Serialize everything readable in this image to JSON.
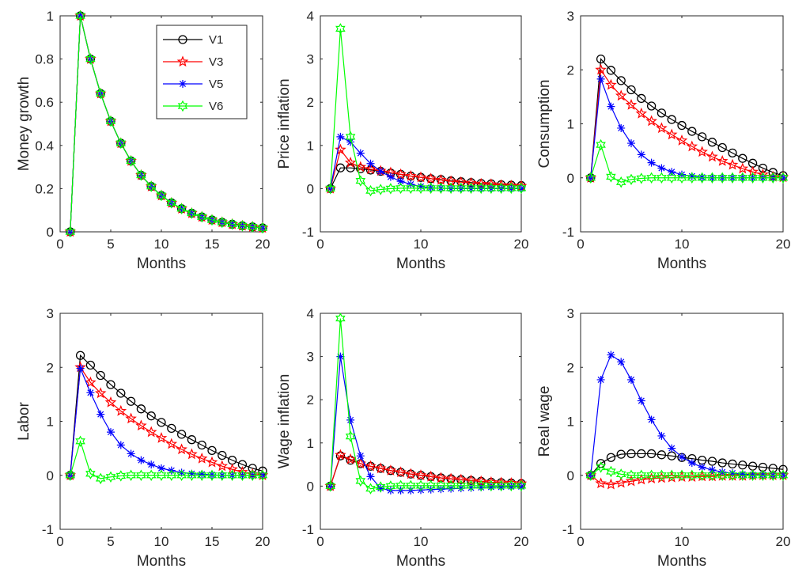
{
  "figure": {
    "colors": {
      "V1": "#000000",
      "V3": "#ff0000",
      "V5": "#0000ff",
      "V6": "#00ff00"
    }
  },
  "chart_data": [
    {
      "type": "line",
      "ylabel": "Money growth",
      "xlabel": "Months",
      "xlim": [
        0,
        20
      ],
      "ylim": [
        0,
        1
      ],
      "xticks": [
        "0",
        "5",
        "10",
        "15",
        "20"
      ],
      "yticks": [
        "0",
        "0.2",
        "0.4",
        "0.6",
        "0.8",
        "1"
      ],
      "x": [
        1,
        2,
        3,
        4,
        5,
        6,
        7,
        8,
        9,
        10,
        11,
        12,
        13,
        14,
        15,
        16,
        17,
        18,
        19,
        20
      ],
      "legend": {
        "location": "top-right"
      },
      "series": [
        {
          "name": "V1",
          "marker": "circle",
          "values": [
            0,
            1,
            0.8,
            0.64,
            0.512,
            0.41,
            0.328,
            0.262,
            0.21,
            0.168,
            0.134,
            0.107,
            0.086,
            0.069,
            0.055,
            0.044,
            0.035,
            0.028,
            0.023,
            0.018
          ]
        },
        {
          "name": "V3",
          "marker": "star",
          "values": [
            0,
            1,
            0.8,
            0.64,
            0.512,
            0.41,
            0.328,
            0.262,
            0.21,
            0.168,
            0.134,
            0.107,
            0.086,
            0.069,
            0.055,
            0.044,
            0.035,
            0.028,
            0.023,
            0.018
          ]
        },
        {
          "name": "V5",
          "marker": "asterisk",
          "values": [
            0,
            1,
            0.8,
            0.64,
            0.512,
            0.41,
            0.328,
            0.262,
            0.21,
            0.168,
            0.134,
            0.107,
            0.086,
            0.069,
            0.055,
            0.044,
            0.035,
            0.028,
            0.023,
            0.018
          ]
        },
        {
          "name": "V6",
          "marker": "hexagram",
          "values": [
            0,
            1,
            0.8,
            0.64,
            0.512,
            0.41,
            0.328,
            0.262,
            0.21,
            0.168,
            0.134,
            0.107,
            0.086,
            0.069,
            0.055,
            0.044,
            0.035,
            0.028,
            0.023,
            0.018
          ]
        }
      ]
    },
    {
      "type": "line",
      "ylabel": "Price inflation",
      "xlabel": "Months",
      "xlim": [
        0,
        20
      ],
      "ylim": [
        -1,
        4
      ],
      "xticks": [
        "0",
        "10",
        "20"
      ],
      "yticks": [
        "-1",
        "0",
        "1",
        "2",
        "3",
        "4"
      ],
      "x": [
        1,
        2,
        3,
        4,
        5,
        6,
        7,
        8,
        9,
        10,
        11,
        12,
        13,
        14,
        15,
        16,
        17,
        18,
        19,
        20
      ],
      "series": [
        {
          "name": "V1",
          "marker": "circle",
          "values": [
            0,
            0.48,
            0.48,
            0.46,
            0.43,
            0.4,
            0.36,
            0.33,
            0.29,
            0.26,
            0.23,
            0.21,
            0.18,
            0.16,
            0.14,
            0.12,
            0.11,
            0.09,
            0.08,
            0.07
          ]
        },
        {
          "name": "V3",
          "marker": "star",
          "values": [
            0,
            0.9,
            0.6,
            0.5,
            0.45,
            0.41,
            0.37,
            0.33,
            0.29,
            0.26,
            0.23,
            0.2,
            0.17,
            0.15,
            0.13,
            0.11,
            0.1,
            0.08,
            0.07,
            0.06
          ]
        },
        {
          "name": "V5",
          "marker": "asterisk",
          "values": [
            0,
            1.2,
            1.08,
            0.82,
            0.58,
            0.4,
            0.27,
            0.17,
            0.1,
            0.05,
            0.02,
            0.01,
            0,
            0,
            0,
            0,
            0,
            0,
            0,
            0
          ]
        },
        {
          "name": "V6",
          "marker": "hexagram",
          "values": [
            0,
            3.7,
            1.2,
            0.18,
            -0.05,
            -0.02,
            0,
            0.01,
            0.01,
            0.01,
            0.01,
            0.01,
            0.01,
            0.01,
            0.01,
            0.01,
            0.01,
            0.01,
            0.01,
            0.01
          ]
        }
      ]
    },
    {
      "type": "line",
      "ylabel": "Consumption",
      "xlabel": "Months",
      "xlim": [
        0,
        20
      ],
      "ylim": [
        -1,
        3
      ],
      "xticks": [
        "0",
        "10",
        "20"
      ],
      "yticks": [
        "-1",
        "0",
        "1",
        "2",
        "3"
      ],
      "x": [
        1,
        2,
        3,
        4,
        5,
        6,
        7,
        8,
        9,
        10,
        11,
        12,
        13,
        14,
        15,
        16,
        17,
        18,
        19,
        20
      ],
      "series": [
        {
          "name": "V1",
          "marker": "circle",
          "values": [
            0,
            2.2,
            1.99,
            1.8,
            1.63,
            1.47,
            1.33,
            1.2,
            1.08,
            0.97,
            0.86,
            0.76,
            0.66,
            0.56,
            0.46,
            0.36,
            0.27,
            0.18,
            0.1,
            0.04
          ]
        },
        {
          "name": "V3",
          "marker": "star",
          "values": [
            0,
            2.0,
            1.72,
            1.52,
            1.35,
            1.19,
            1.05,
            0.92,
            0.8,
            0.69,
            0.58,
            0.48,
            0.39,
            0.31,
            0.24,
            0.17,
            0.11,
            0.06,
            0.02,
            0.01
          ]
        },
        {
          "name": "V5",
          "marker": "asterisk",
          "values": [
            0,
            1.83,
            1.32,
            0.92,
            0.64,
            0.43,
            0.28,
            0.18,
            0.11,
            0.06,
            0.03,
            0.01,
            0,
            0,
            0,
            0,
            0,
            0,
            0,
            0
          ]
        },
        {
          "name": "V6",
          "marker": "hexagram",
          "values": [
            0,
            0.61,
            0.02,
            -0.08,
            -0.03,
            -0.01,
            0,
            0,
            0,
            0,
            0,
            0,
            0,
            0,
            0,
            0,
            0,
            0,
            0,
            0
          ]
        }
      ]
    },
    {
      "type": "line",
      "ylabel": "Labor",
      "xlabel": "Months",
      "xlim": [
        0,
        20
      ],
      "ylim": [
        -1,
        3
      ],
      "xticks": [
        "0",
        "5",
        "10",
        "15",
        "20"
      ],
      "yticks": [
        "-1",
        "0",
        "1",
        "2",
        "3"
      ],
      "x": [
        1,
        2,
        3,
        4,
        5,
        6,
        7,
        8,
        9,
        10,
        11,
        12,
        13,
        14,
        15,
        16,
        17,
        18,
        19,
        20
      ],
      "series": [
        {
          "name": "V1",
          "marker": "circle",
          "values": [
            0,
            2.22,
            2.04,
            1.85,
            1.68,
            1.52,
            1.37,
            1.23,
            1.1,
            0.98,
            0.87,
            0.76,
            0.66,
            0.56,
            0.46,
            0.37,
            0.28,
            0.2,
            0.13,
            0.08
          ]
        },
        {
          "name": "V3",
          "marker": "star",
          "values": [
            0,
            2.0,
            1.72,
            1.52,
            1.35,
            1.19,
            1.05,
            0.92,
            0.8,
            0.69,
            0.58,
            0.48,
            0.39,
            0.31,
            0.24,
            0.17,
            0.11,
            0.06,
            0.02,
            0
          ]
        },
        {
          "name": "V5",
          "marker": "asterisk",
          "values": [
            0,
            1.98,
            1.53,
            1.13,
            0.8,
            0.56,
            0.4,
            0.28,
            0.2,
            0.13,
            0.09,
            0.05,
            0.03,
            0.02,
            0.01,
            0,
            0,
            0,
            0,
            0
          ]
        },
        {
          "name": "V6",
          "marker": "hexagram",
          "values": [
            0,
            0.63,
            0.03,
            -0.06,
            -0.03,
            -0.01,
            0,
            0,
            0,
            0,
            0,
            0,
            0,
            0,
            0,
            0,
            0,
            0,
            0,
            0
          ]
        }
      ]
    },
    {
      "type": "line",
      "ylabel": "Wage inflation",
      "xlabel": "Months",
      "xlim": [
        0,
        20
      ],
      "ylim": [
        -1,
        4
      ],
      "xticks": [
        "0",
        "10",
        "20"
      ],
      "yticks": [
        "-1",
        "0",
        "1",
        "2",
        "3",
        "4"
      ],
      "x": [
        1,
        2,
        3,
        4,
        5,
        6,
        7,
        8,
        9,
        10,
        11,
        12,
        13,
        14,
        15,
        16,
        17,
        18,
        19,
        20
      ],
      "series": [
        {
          "name": "V1",
          "marker": "circle",
          "values": [
            0,
            0.7,
            0.6,
            0.52,
            0.46,
            0.41,
            0.36,
            0.32,
            0.28,
            0.25,
            0.22,
            0.19,
            0.17,
            0.15,
            0.13,
            0.11,
            0.09,
            0.08,
            0.07,
            0.06
          ]
        },
        {
          "name": "V3",
          "marker": "star",
          "values": [
            0,
            0.72,
            0.62,
            0.52,
            0.46,
            0.41,
            0.36,
            0.32,
            0.28,
            0.25,
            0.22,
            0.19,
            0.17,
            0.15,
            0.13,
            0.11,
            0.09,
            0.08,
            0.07,
            0.06
          ]
        },
        {
          "name": "V5",
          "marker": "asterisk",
          "values": [
            0,
            3.0,
            1.53,
            0.7,
            0.22,
            -0.05,
            -0.1,
            -0.1,
            -0.1,
            -0.09,
            -0.08,
            -0.07,
            -0.06,
            -0.05,
            -0.04,
            -0.03,
            -0.02,
            -0.02,
            -0.01,
            -0.01
          ]
        },
        {
          "name": "V6",
          "marker": "hexagram",
          "values": [
            0,
            3.88,
            1.15,
            0.12,
            -0.06,
            -0.02,
            0,
            0.01,
            0.01,
            0.01,
            0.01,
            0.01,
            0.01,
            0.01,
            0.01,
            0.01,
            0.01,
            0.01,
            0.01,
            0.01
          ]
        }
      ]
    },
    {
      "type": "line",
      "ylabel": "Real wage",
      "xlabel": "Months",
      "xlim": [
        0,
        20
      ],
      "ylim": [
        -1,
        3
      ],
      "xticks": [
        "0",
        "10",
        "20"
      ],
      "yticks": [
        "-1",
        "0",
        "1",
        "2",
        "3"
      ],
      "x": [
        1,
        2,
        3,
        4,
        5,
        6,
        7,
        8,
        9,
        10,
        11,
        12,
        13,
        14,
        15,
        16,
        17,
        18,
        19,
        20
      ],
      "series": [
        {
          "name": "V1",
          "marker": "circle",
          "values": [
            0,
            0.22,
            0.33,
            0.39,
            0.4,
            0.4,
            0.4,
            0.38,
            0.36,
            0.33,
            0.31,
            0.28,
            0.26,
            0.23,
            0.21,
            0.19,
            0.17,
            0.15,
            0.13,
            0.11
          ]
        },
        {
          "name": "V3",
          "marker": "star",
          "values": [
            0,
            -0.15,
            -0.17,
            -0.14,
            -0.11,
            -0.08,
            -0.06,
            -0.05,
            -0.04,
            -0.03,
            -0.03,
            -0.02,
            -0.02,
            -0.01,
            -0.01,
            -0.01,
            0,
            0,
            0,
            0
          ]
        },
        {
          "name": "V5",
          "marker": "asterisk",
          "values": [
            0,
            1.77,
            2.23,
            2.1,
            1.77,
            1.38,
            1.03,
            0.73,
            0.5,
            0.34,
            0.23,
            0.15,
            0.1,
            0.06,
            0.04,
            0.02,
            0.01,
            0.01,
            0,
            0
          ]
        },
        {
          "name": "V6",
          "marker": "hexagram",
          "values": [
            0,
            0.15,
            0.07,
            0.02,
            0,
            0,
            0,
            0,
            0,
            0,
            0,
            0,
            0,
            0,
            0,
            0,
            0,
            0,
            0,
            0
          ]
        }
      ]
    }
  ]
}
